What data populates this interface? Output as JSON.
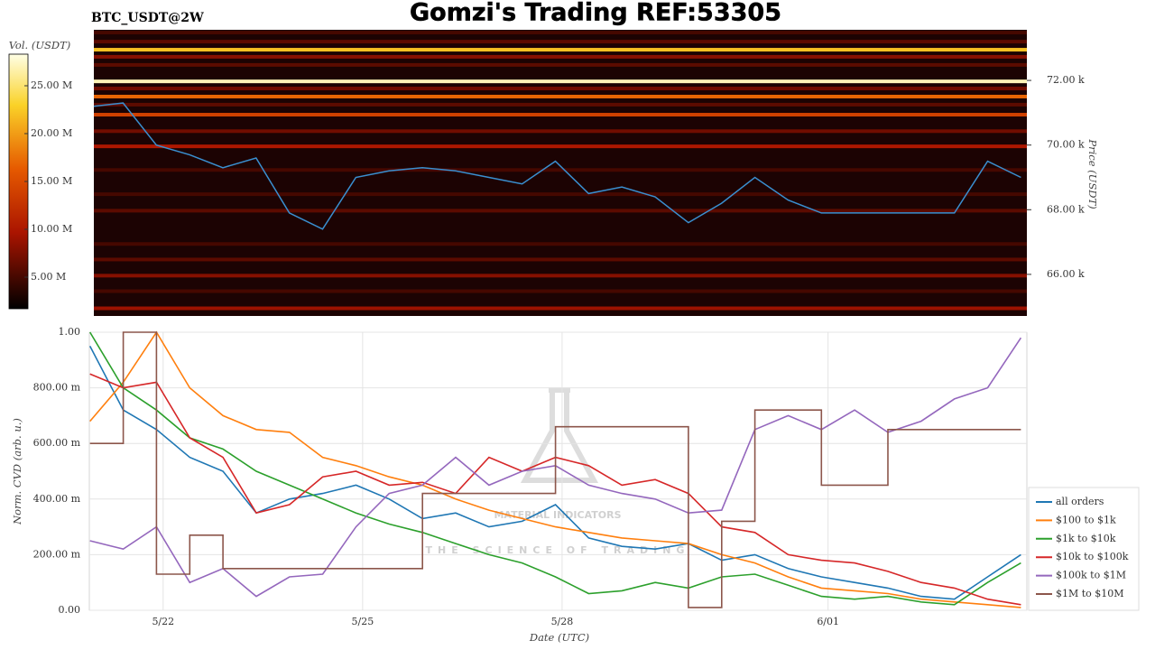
{
  "title": "Gomzi's Trading REF:53305",
  "watermark": {
    "brand": "MATERIAL INDICATORS",
    "tagline": "THE SCIENCE OF TRADING"
  },
  "chart_data": [
    {
      "type": "heatmap",
      "subtitle": "BTC_USDT@2W",
      "ylabel": "Price (USDT)",
      "colorbar_label": "Vol. (USDT)",
      "ylim": [
        64713,
        73566
      ],
      "yticks": [
        {
          "value": 66000,
          "label": "66.00 k"
        },
        {
          "value": 68000,
          "label": "68.00 k"
        },
        {
          "value": 70000,
          "label": "70.00 k"
        },
        {
          "value": 72000,
          "label": "72.00 k"
        }
      ],
      "clim": [
        1700000,
        28300000
      ],
      "cticks": [
        {
          "value": 5000000,
          "label": "5.00 M"
        },
        {
          "value": 10000000,
          "label": "10.00 M"
        },
        {
          "value": 15000000,
          "label": "15.00 M"
        },
        {
          "value": 20000000,
          "label": "20.00 M"
        },
        {
          "value": 25000000,
          "label": "25.00 M"
        }
      ],
      "levels": [
        73480,
        73200,
        72950,
        72730,
        72480,
        71970,
        71750,
        71500,
        71250,
        70940,
        70430,
        69960,
        69230,
        68480,
        67970,
        66940,
        66460,
        65960,
        65480,
        64950
      ],
      "volumes": [
        5000000,
        6000000,
        22000000,
        8000000,
        6000000,
        27000000,
        7000000,
        17000000,
        6000000,
        14000000,
        7000000,
        10000000,
        5000000,
        5000000,
        6000000,
        5000000,
        6000000,
        8000000,
        5000000,
        9000000
      ],
      "xlim": [
        -1.04,
        12.99
      ],
      "x": [
        -1.04,
        -0.6,
        -0.1,
        0.4,
        0.9,
        1.4,
        1.9,
        2.4,
        2.9,
        3.4,
        3.9,
        4.4,
        4.9,
        5.4,
        5.9,
        6.4,
        6.9,
        7.4,
        7.9,
        8.4,
        8.9,
        9.4,
        9.9,
        10.4,
        10.9,
        11.4,
        11.9,
        12.4,
        12.9
      ],
      "price": [
        71200,
        71300,
        70000,
        69700,
        69300,
        69600,
        67900,
        67400,
        69000,
        69200,
        69300,
        69200,
        69000,
        68800,
        69500,
        68500,
        68700,
        68400,
        67600,
        68200,
        69000,
        68300,
        67900,
        67900,
        67900,
        67900,
        67900,
        69500,
        69000
      ],
      "price_color": "#3a8fd0"
    },
    {
      "type": "line",
      "xlabel": "Date (UTC)",
      "ylabel": "Norm. CVD (arb. u.)",
      "grid": true,
      "legend": "lower right",
      "xlim": [
        -1.11,
        12.99
      ],
      "xticks": [
        {
          "value": 0,
          "label": "5/22"
        },
        {
          "value": 3,
          "label": "5/25"
        },
        {
          "value": 6,
          "label": "5/28"
        },
        {
          "value": 10,
          "label": "6/01"
        }
      ],
      "ylim": [
        0,
        1
      ],
      "yticks": [
        {
          "value": 0,
          "label": "0.00"
        },
        {
          "value": 0.2,
          "label": "200.00 m"
        },
        {
          "value": 0.4,
          "label": "400.00 m"
        },
        {
          "value": 0.6,
          "label": "600.00 m"
        },
        {
          "value": 0.8,
          "label": "800.00 m"
        },
        {
          "value": 1,
          "label": "1.00"
        }
      ],
      "x": [
        -1.1,
        -0.6,
        -0.1,
        0.4,
        0.9,
        1.4,
        1.9,
        2.4,
        2.9,
        3.4,
        3.9,
        4.4,
        4.9,
        5.4,
        5.9,
        6.4,
        6.9,
        7.4,
        7.9,
        8.4,
        8.9,
        9.4,
        9.9,
        10.4,
        10.9,
        11.4,
        11.9,
        12.4,
        12.9
      ],
      "series": [
        {
          "name": "all orders",
          "color": "#1f77b4",
          "values": [
            0.95,
            0.72,
            0.65,
            0.55,
            0.5,
            0.35,
            0.4,
            0.42,
            0.45,
            0.4,
            0.33,
            0.35,
            0.3,
            0.32,
            0.38,
            0.26,
            0.23,
            0.22,
            0.24,
            0.18,
            0.2,
            0.15,
            0.12,
            0.1,
            0.08,
            0.05,
            0.04,
            0.12,
            0.2
          ]
        },
        {
          "name": "$100 to $1k",
          "color": "#ff7f0e",
          "values": [
            0.68,
            0.82,
            1.0,
            0.8,
            0.7,
            0.65,
            0.64,
            0.55,
            0.52,
            0.48,
            0.45,
            0.4,
            0.36,
            0.33,
            0.3,
            0.28,
            0.26,
            0.25,
            0.24,
            0.2,
            0.17,
            0.12,
            0.08,
            0.07,
            0.06,
            0.04,
            0.03,
            0.02,
            0.01
          ]
        },
        {
          "name": "$1k to $10k",
          "color": "#2ca02c",
          "values": [
            1.0,
            0.8,
            0.72,
            0.62,
            0.58,
            0.5,
            0.45,
            0.4,
            0.35,
            0.31,
            0.28,
            0.24,
            0.2,
            0.17,
            0.12,
            0.06,
            0.07,
            0.1,
            0.08,
            0.12,
            0.13,
            0.09,
            0.05,
            0.04,
            0.05,
            0.03,
            0.02,
            0.1,
            0.17
          ]
        },
        {
          "name": "$10k to $100k",
          "color": "#d62728",
          "values": [
            0.85,
            0.8,
            0.82,
            0.62,
            0.55,
            0.35,
            0.38,
            0.48,
            0.5,
            0.45,
            0.46,
            0.42,
            0.55,
            0.5,
            0.55,
            0.52,
            0.45,
            0.47,
            0.42,
            0.3,
            0.28,
            0.2,
            0.18,
            0.17,
            0.14,
            0.1,
            0.08,
            0.04,
            0.02
          ]
        },
        {
          "name": "$100k to $1M",
          "color": "#9467bd",
          "values": [
            0.25,
            0.22,
            0.3,
            0.1,
            0.15,
            0.05,
            0.12,
            0.13,
            0.3,
            0.42,
            0.45,
            0.55,
            0.45,
            0.5,
            0.52,
            0.45,
            0.42,
            0.4,
            0.35,
            0.36,
            0.65,
            0.7,
            0.65,
            0.72,
            0.64,
            0.68,
            0.76,
            0.8,
            0.98
          ]
        },
        {
          "name": "$1M to $10M",
          "color": "#8c564b",
          "step": "post",
          "values": [
            0.6,
            1.0,
            0.13,
            0.27,
            0.15,
            0.15,
            0.15,
            0.15,
            0.15,
            0.15,
            0.42,
            0.42,
            0.42,
            0.42,
            0.66,
            0.66,
            0.66,
            0.66,
            0.01,
            0.32,
            0.72,
            0.72,
            0.45,
            0.45,
            0.65,
            0.65,
            0.65,
            0.65,
            0.65
          ]
        }
      ]
    }
  ]
}
